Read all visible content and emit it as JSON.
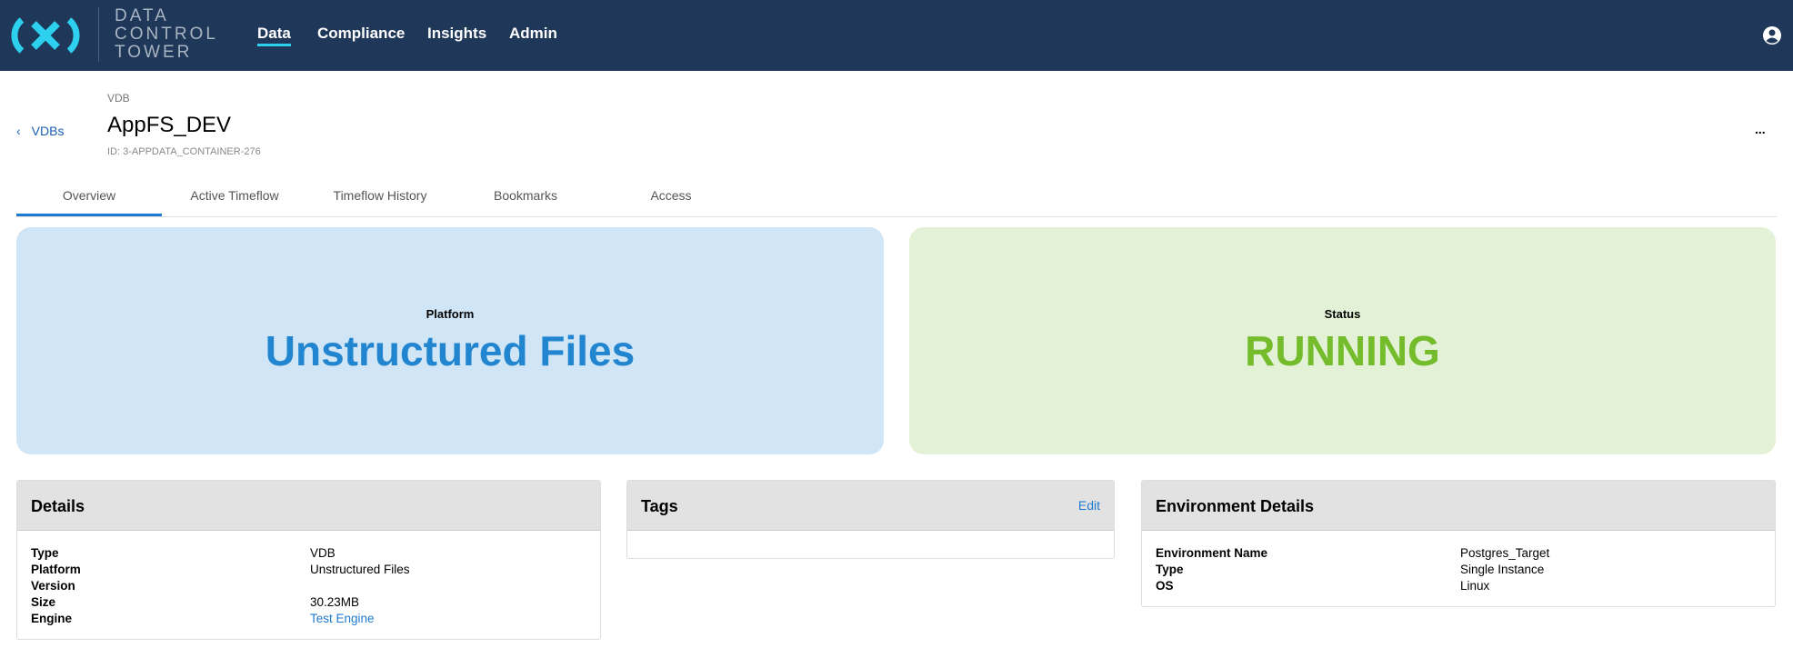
{
  "header": {
    "brand": [
      "DATA",
      "CONTROL",
      "TOWER"
    ],
    "nav": [
      "Data",
      "Compliance",
      "Insights",
      "Admin"
    ],
    "active_nav": "Data"
  },
  "page": {
    "back_label": "VDBs",
    "eyebrow": "VDB",
    "title": "AppFS_DEV",
    "id": "ID: 3-APPDATA_CONTAINER-276",
    "more": "..."
  },
  "tabs": [
    "Overview",
    "Active Timeflow",
    "Timeflow History",
    "Bookmarks",
    "Access"
  ],
  "cards": {
    "platform": {
      "label": "Platform",
      "value": "Unstructured Files",
      "color": "#2185d0",
      "bg": "#d0e5f5"
    },
    "status": {
      "label": "Status",
      "value": "RUNNING",
      "color": "#74bc2c",
      "bg": "#e3f1d6"
    }
  },
  "details": {
    "title": "Details",
    "rows": [
      [
        "Type",
        "VDB"
      ],
      [
        "Platform",
        "Unstructured Files"
      ],
      [
        "Version",
        ""
      ],
      [
        "Size",
        "30.23MB"
      ],
      [
        "Engine",
        "Test Engine"
      ]
    ]
  },
  "tags": {
    "title": "Tags",
    "edit": "Edit"
  },
  "environment": {
    "title": "Environment Details",
    "rows": [
      [
        "Environment Name",
        "Postgres_Target"
      ],
      [
        "Type",
        "Single Instance"
      ],
      [
        "OS",
        "Linux"
      ]
    ]
  }
}
